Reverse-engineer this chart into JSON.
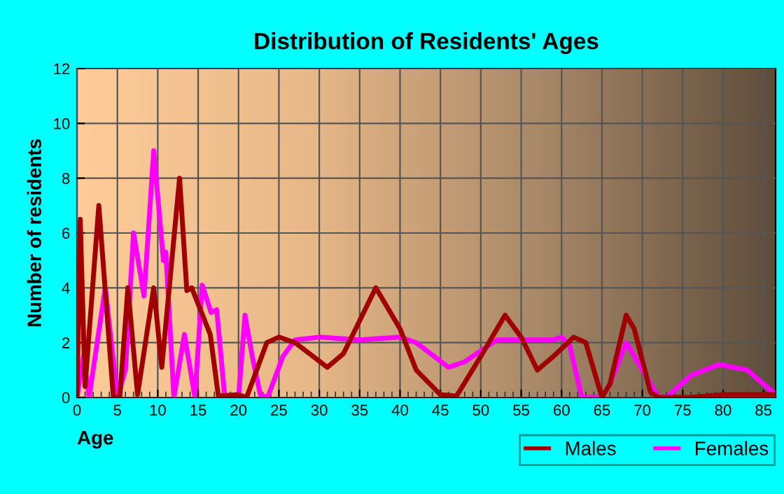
{
  "chart_data": {
    "type": "line",
    "title": "Distribution of Residents' Ages",
    "xlabel": "Age",
    "ylabel": "Number of residents",
    "xlim": [
      0,
      86.5
    ],
    "xticks": [
      0,
      5,
      10,
      15,
      20,
      25,
      30,
      35,
      40,
      45,
      50,
      55,
      60,
      65,
      70,
      75,
      80,
      85
    ],
    "ylim": [
      0,
      12
    ],
    "yticks": [
      0,
      2,
      4,
      6,
      8,
      10,
      12
    ],
    "grid": true,
    "legend": "bottom right",
    "marker": "none",
    "line_style": "solid",
    "series": [
      {
        "name": "Males",
        "color": "#a00000",
        "x": [
          0,
          0.4,
          1,
          2.7,
          4.5,
          5.3,
          6.3,
          7.5,
          9.5,
          10.5,
          12.7,
          13.6,
          14.2,
          16.5,
          17.5,
          20,
          21,
          23.5,
          25,
          27,
          31,
          33,
          37,
          40,
          42,
          45,
          47,
          50,
          53,
          55,
          57,
          59,
          61.5,
          63,
          65,
          66,
          68,
          69,
          71,
          72,
          76,
          80,
          86.5
        ],
        "values": [
          0,
          6.5,
          0.4,
          7,
          0,
          0,
          4,
          0.1,
          4,
          1.1,
          8,
          3.9,
          4,
          2.3,
          0.05,
          0.1,
          0,
          2,
          2.2,
          2,
          1.1,
          1.6,
          4,
          2.5,
          1,
          0.1,
          0.05,
          1.5,
          3,
          2.2,
          1,
          1.5,
          2.2,
          2,
          0,
          0.5,
          3,
          2.5,
          0.2,
          0,
          0,
          0.1,
          0.1
        ]
      },
      {
        "name": "Females",
        "color": "#ff00ff",
        "x": [
          0,
          0.8,
          1.5,
          3.5,
          5,
          6,
          7,
          8.3,
          9.5,
          10.7,
          11,
          12,
          13.3,
          14.6,
          15.5,
          16.6,
          17.3,
          18.3,
          20,
          20.8,
          21.7,
          22.7,
          23.6,
          25.5,
          27,
          30,
          35,
          40,
          42,
          46,
          48,
          52,
          57,
          59,
          60,
          61,
          62.5,
          65,
          66,
          68,
          70,
          72,
          73,
          76,
          79.5,
          83,
          86.5
        ],
        "values": [
          0,
          1.5,
          0,
          4,
          0,
          1,
          6,
          3.7,
          9,
          5,
          5.3,
          0,
          2.3,
          0,
          4.1,
          3.1,
          3.2,
          0,
          0,
          3,
          1.5,
          0.1,
          0,
          1.5,
          2.1,
          2.2,
          2.1,
          2.2,
          2,
          1.1,
          1.3,
          2.1,
          2.1,
          2.1,
          2.2,
          1.9,
          0,
          0,
          0.5,
          2,
          1,
          0,
          0,
          0.8,
          1.2,
          1,
          0.1
        ]
      }
    ]
  }
}
